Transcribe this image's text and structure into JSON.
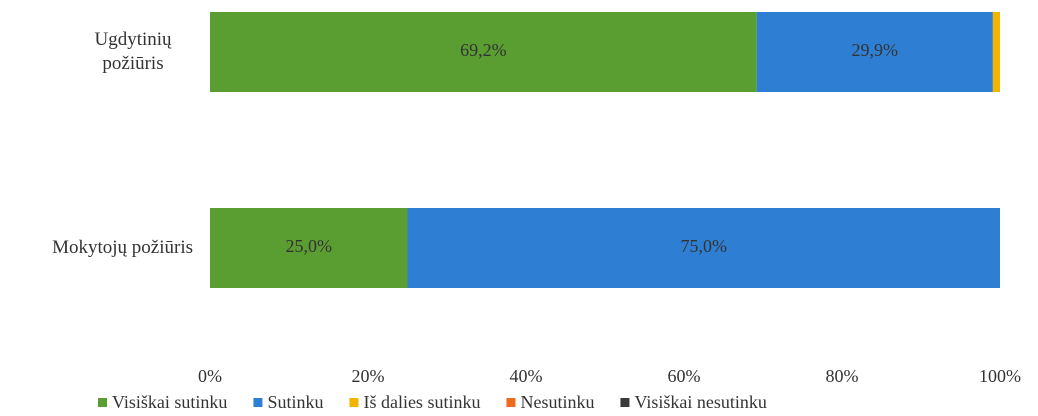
{
  "chart_data": {
    "type": "stacked_bar_horizontal",
    "categories": [
      "Ugdytinių požiūris",
      "Mokytojų požiūris"
    ],
    "series": [
      {
        "name": "Visiškai sutinku",
        "color": "#5a9e32",
        "values": [
          69.2,
          25.0
        ],
        "value_labels": [
          "69,2%",
          "25,0%"
        ]
      },
      {
        "name": "Sutinku",
        "color": "#2e7fd3",
        "values": [
          29.9,
          75.0
        ],
        "value_labels": [
          "29,9%",
          "75,0%"
        ]
      },
      {
        "name": "Iš dalies sutinku",
        "color": "#f2b400",
        "values": [
          0.9,
          0
        ]
      },
      {
        "name": "Nesutinku",
        "color": "#ee6a1f",
        "values": [
          0,
          0
        ]
      },
      {
        "name": "Visiškai nesutinku",
        "color": "#3a3a3a",
        "values": [
          0,
          0
        ]
      }
    ],
    "xlim": [
      0,
      100
    ],
    "xticks": [
      {
        "value": 0,
        "label": "0%"
      },
      {
        "value": 20,
        "label": "20%"
      },
      {
        "value": 40,
        "label": "40%"
      },
      {
        "value": 60,
        "label": "60%"
      },
      {
        "value": 80,
        "label": "80%"
      },
      {
        "value": 100,
        "label": "100%"
      }
    ],
    "legend": "bottom"
  }
}
